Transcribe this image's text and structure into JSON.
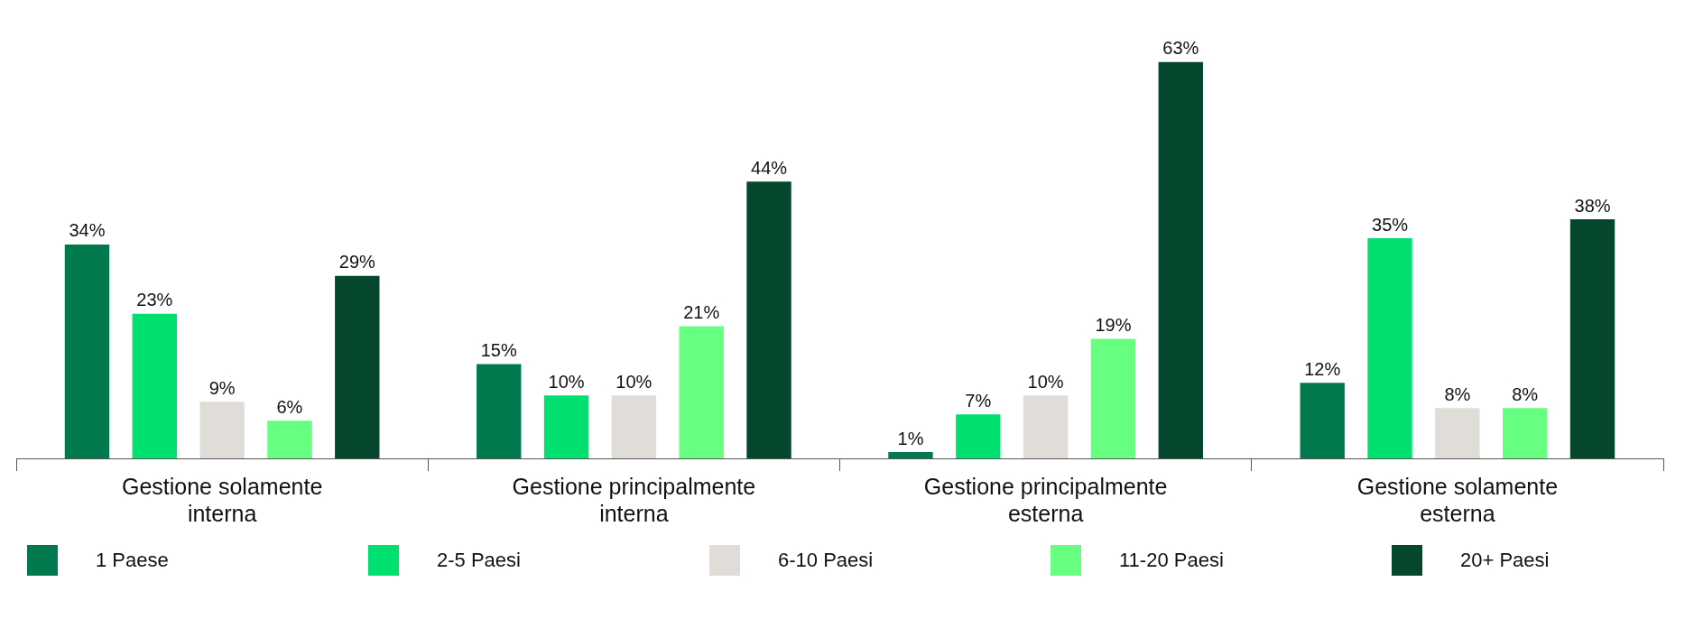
{
  "chart_data": {
    "type": "bar",
    "categories": [
      "Gestione solamente interna",
      "Gestione principalmente interna",
      "Gestione principalmente esterna",
      "Gestione solamente esterna"
    ],
    "series": [
      {
        "name": "1 Paese",
        "color": "#007a4d",
        "values": [
          34,
          15,
          1,
          12
        ],
        "value_labels": [
          "34%",
          "15%",
          "1%",
          "12%"
        ]
      },
      {
        "name": "2-5 Paesi",
        "color": "#00e06e",
        "values": [
          23,
          10,
          7,
          35
        ],
        "value_labels": [
          "23%",
          "10%",
          "7%",
          "35%"
        ]
      },
      {
        "name": "6-10 Paesi",
        "color": "#e0ddd8",
        "values": [
          9,
          10,
          10,
          8
        ],
        "value_labels": [
          "9%",
          "10%",
          "10%",
          "8%"
        ]
      },
      {
        "name": "11-20 Paesi",
        "color": "#66ff80",
        "values": [
          6,
          21,
          19,
          8
        ],
        "value_labels": [
          "6%",
          "21%",
          "19%",
          "8%"
        ]
      },
      {
        "name": "20+ Paesi",
        "color": "#05472c",
        "values": [
          29,
          44,
          63,
          38
        ],
        "value_labels": [
          "29%",
          "44%",
          "63%",
          "38%"
        ]
      }
    ],
    "grid": false,
    "legend": "bottom left"
  }
}
